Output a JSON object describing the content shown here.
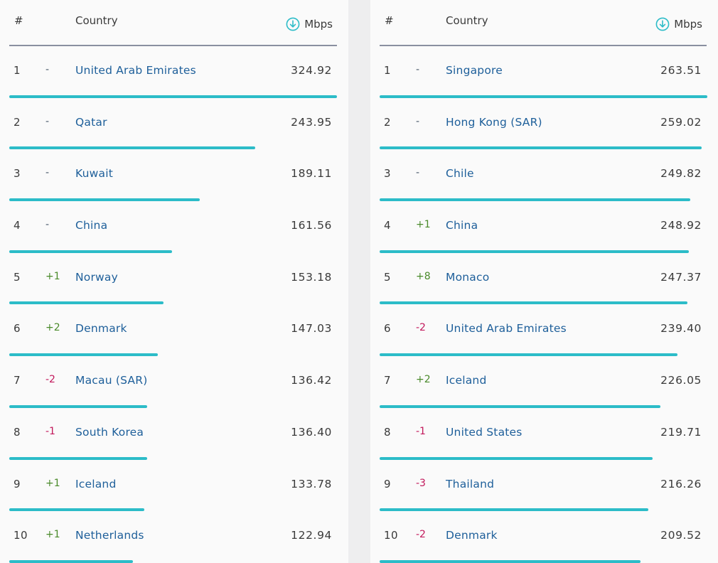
{
  "accent_color": "#2cbcc8",
  "header": {
    "rank_label": "#",
    "country_label": "Country",
    "unit_label": "Mbps",
    "unit_icon": "download-arrow-icon"
  },
  "tables": [
    {
      "max_speed": 324.92,
      "rows": [
        {
          "rank": "1",
          "change": "-",
          "trend": "flat",
          "country": "United Arab Emirates",
          "speed": "324.92",
          "speed_value": 324.92
        },
        {
          "rank": "2",
          "change": "-",
          "trend": "flat",
          "country": "Qatar",
          "speed": "243.95",
          "speed_value": 243.95
        },
        {
          "rank": "3",
          "change": "-",
          "trend": "flat",
          "country": "Kuwait",
          "speed": "189.11",
          "speed_value": 189.11
        },
        {
          "rank": "4",
          "change": "-",
          "trend": "flat",
          "country": "China",
          "speed": "161.56",
          "speed_value": 161.56
        },
        {
          "rank": "5",
          "change": "+1",
          "trend": "up",
          "country": "Norway",
          "speed": "153.18",
          "speed_value": 153.18
        },
        {
          "rank": "6",
          "change": "+2",
          "trend": "up",
          "country": "Denmark",
          "speed": "147.03",
          "speed_value": 147.03
        },
        {
          "rank": "7",
          "change": "-2",
          "trend": "down",
          "country": "Macau (SAR)",
          "speed": "136.42",
          "speed_value": 136.42
        },
        {
          "rank": "8",
          "change": "-1",
          "trend": "down",
          "country": "South Korea",
          "speed": "136.40",
          "speed_value": 136.4
        },
        {
          "rank": "9",
          "change": "+1",
          "trend": "up",
          "country": "Iceland",
          "speed": "133.78",
          "speed_value": 133.78
        },
        {
          "rank": "10",
          "change": "+1",
          "trend": "up",
          "country": "Netherlands",
          "speed": "122.94",
          "speed_value": 122.94
        }
      ]
    },
    {
      "max_speed": 263.51,
      "rows": [
        {
          "rank": "1",
          "change": "-",
          "trend": "flat",
          "country": "Singapore",
          "speed": "263.51",
          "speed_value": 263.51
        },
        {
          "rank": "2",
          "change": "-",
          "trend": "flat",
          "country": "Hong Kong (SAR)",
          "speed": "259.02",
          "speed_value": 259.02
        },
        {
          "rank": "3",
          "change": "-",
          "trend": "flat",
          "country": "Chile",
          "speed": "249.82",
          "speed_value": 249.82
        },
        {
          "rank": "4",
          "change": "+1",
          "trend": "up",
          "country": "China",
          "speed": "248.92",
          "speed_value": 248.92
        },
        {
          "rank": "5",
          "change": "+8",
          "trend": "up",
          "country": "Monaco",
          "speed": "247.37",
          "speed_value": 247.37
        },
        {
          "rank": "6",
          "change": "-2",
          "trend": "down",
          "country": "United Arab Emirates",
          "speed": "239.40",
          "speed_value": 239.4
        },
        {
          "rank": "7",
          "change": "+2",
          "trend": "up",
          "country": "Iceland",
          "speed": "226.05",
          "speed_value": 226.05
        },
        {
          "rank": "8",
          "change": "-1",
          "trend": "down",
          "country": "United States",
          "speed": "219.71",
          "speed_value": 219.71
        },
        {
          "rank": "9",
          "change": "-3",
          "trend": "down",
          "country": "Thailand",
          "speed": "216.26",
          "speed_value": 216.26
        },
        {
          "rank": "10",
          "change": "-2",
          "trend": "down",
          "country": "Denmark",
          "speed": "209.52",
          "speed_value": 209.52
        }
      ]
    }
  ]
}
